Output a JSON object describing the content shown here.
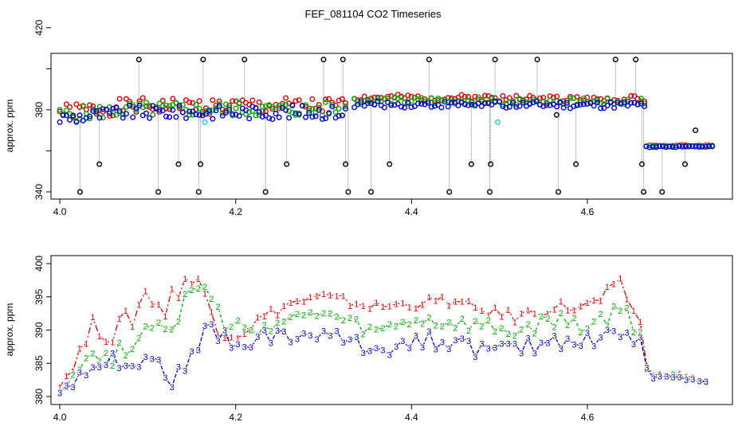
{
  "title": "FEF_081104  CO2 Timeseries",
  "colors": {
    "s1": "#dd0000",
    "s2": "#00aa00",
    "s3": "#0000cc",
    "outlier": "#000000",
    "cyan": "#22cccc",
    "stem": "#888888"
  },
  "chart_data": [
    {
      "type": "scatter",
      "name": "top-panel",
      "ylabel": "approx. ppm",
      "xlabel": "",
      "xlim": [
        3.99,
        4.765
      ],
      "ylim": [
        336.5,
        407.5
      ],
      "xticks": [
        4.0,
        4.2,
        4.4,
        4.6
      ],
      "xtick_labels": [
        "4.0",
        "4.2",
        "4.4",
        "4.6"
      ],
      "yticks": [
        340,
        360,
        380,
        400,
        420
      ],
      "ytick_labels": [
        "340",
        "",
        "380",
        "",
        "420"
      ],
      "series": [
        {
          "name": "1",
          "color": "#dd0000",
          "segments": [
            {
              "x0": 4.0,
              "x1": 4.325,
              "base": 381.8,
              "amp": 4.0,
              "seed": 1
            },
            {
              "x0": 4.335,
              "x1": 4.495,
              "base": 385.8,
              "amp": 1.6,
              "seed": 2
            },
            {
              "x0": 4.5,
              "x1": 4.665,
              "base": 385.2,
              "amp": 1.8,
              "seed": 3
            },
            {
              "x0": 4.667,
              "x1": 4.742,
              "base": 362.5,
              "amp": 0.4,
              "seed": 4
            }
          ]
        },
        {
          "name": "2",
          "color": "#00aa00",
          "segments": [
            {
              "x0": 4.0,
              "x1": 4.325,
              "base": 380.2,
              "amp": 3.6,
              "seed": 5
            },
            {
              "x0": 4.335,
              "x1": 4.495,
              "base": 384.5,
              "amp": 1.8,
              "seed": 6
            },
            {
              "x0": 4.5,
              "x1": 4.665,
              "base": 384.0,
              "amp": 1.8,
              "seed": 7
            },
            {
              "x0": 4.667,
              "x1": 4.742,
              "base": 362.3,
              "amp": 0.4,
              "seed": 8
            }
          ]
        },
        {
          "name": "3",
          "color": "#0000cc",
          "segments": [
            {
              "x0": 4.0,
              "x1": 4.325,
              "base": 378.8,
              "amp": 3.4,
              "seed": 9
            },
            {
              "x0": 4.335,
              "x1": 4.495,
              "base": 382.6,
              "amp": 1.6,
              "seed": 10
            },
            {
              "x0": 4.5,
              "x1": 4.665,
              "base": 382.4,
              "amp": 1.8,
              "seed": 11
            },
            {
              "x0": 4.667,
              "x1": 4.742,
              "base": 362.0,
              "amp": 0.4,
              "seed": 12
            }
          ]
        }
      ],
      "outliers_high": [
        4.09,
        4.163,
        4.21,
        4.3,
        4.322,
        4.42,
        4.495,
        4.543,
        4.632,
        4.655
      ],
      "outliers_mid": [
        4.045,
        4.135,
        4.16,
        4.258,
        4.325,
        4.375,
        4.468,
        4.49,
        4.587,
        4.662,
        4.711
      ],
      "outliers_low": [
        4.023,
        4.112,
        4.158,
        4.234,
        4.328,
        4.354,
        4.443,
        4.489,
        4.567,
        4.664,
        4.685
      ],
      "outliers_other": [
        {
          "x": 4.723,
          "y": 370.0
        },
        {
          "x": 4.565,
          "y": 377.5
        }
      ],
      "cyan_points": [
        {
          "x": 4.165,
          "y": 374.0
        },
        {
          "x": 4.498,
          "y": 374.0
        }
      ],
      "high_y": 404.5,
      "mid_y": 353.5,
      "low_y": 340.0
    },
    {
      "type": "line",
      "name": "bottom-panel",
      "ylabel": "approx. ppm",
      "xlabel": "",
      "xlim": [
        3.99,
        4.765
      ],
      "ylim": [
        378.8,
        401.2
      ],
      "xticks": [
        4.0,
        4.2,
        4.4,
        4.6
      ],
      "xtick_labels": [
        "4.0",
        "4.2",
        "4.4",
        "4.6"
      ],
      "yticks": [
        380,
        385,
        390,
        395,
        400
      ],
      "ytick_labels": [
        "380",
        "385",
        "390",
        "395",
        "400"
      ],
      "series": [
        {
          "name": "1",
          "label": "1",
          "color": "#dd0000",
          "dash": "8,3,2,3",
          "x": [
            4.0,
            4.02,
            4.04,
            4.06,
            4.08,
            4.1,
            4.12,
            4.14,
            4.16,
            4.18,
            4.2,
            4.22,
            4.26,
            4.3,
            4.36,
            4.4,
            4.44,
            4.48,
            4.52,
            4.56,
            4.6,
            4.64,
            4.66,
            4.67,
            4.7,
            4.74
          ],
          "y": [
            381.5,
            386.0,
            391.0,
            389.5,
            391.5,
            396.0,
            393.0,
            398.0,
            396.5,
            391.0,
            389.5,
            391.0,
            394.0,
            395.0,
            393.5,
            394.0,
            394.5,
            393.0,
            392.0,
            393.5,
            393.5,
            396.5,
            391.0,
            383.0,
            383.5,
            382.0
          ],
          "amp": [
            1.0,
            1.2,
            1.8,
            2.0,
            2.0,
            2.2,
            2.2,
            2.0,
            2.0,
            1.8,
            1.5,
            1.2,
            0.8,
            0.8,
            0.8,
            0.8,
            0.8,
            0.8,
            1.0,
            1.0,
            1.2,
            1.5,
            1.0,
            0.3,
            0.2,
            0.2
          ]
        },
        {
          "name": "2",
          "label": "2",
          "color": "#00aa00",
          "dash": "4,3",
          "x": [
            4.0,
            4.02,
            4.04,
            4.06,
            4.08,
            4.1,
            4.12,
            4.14,
            4.16,
            4.18,
            4.2,
            4.22,
            4.26,
            4.3,
            4.36,
            4.4,
            4.44,
            4.48,
            4.52,
            4.56,
            4.6,
            4.64,
            4.66,
            4.67,
            4.7,
            4.74
          ],
          "y": [
            381.0,
            384.0,
            386.5,
            386.0,
            388.0,
            391.0,
            391.0,
            393.5,
            397.0,
            392.0,
            390.0,
            390.0,
            391.5,
            392.5,
            389.5,
            391.5,
            391.0,
            390.5,
            389.5,
            391.5,
            390.5,
            393.0,
            389.5,
            382.8,
            383.2,
            382.0
          ],
          "amp": [
            0.6,
            0.8,
            1.2,
            1.5,
            1.6,
            1.8,
            2.0,
            2.0,
            2.0,
            1.8,
            1.5,
            1.2,
            1.0,
            1.0,
            1.2,
            1.2,
            1.2,
            1.2,
            1.2,
            1.4,
            1.4,
            1.6,
            1.2,
            0.3,
            0.2,
            0.2
          ]
        },
        {
          "name": "3",
          "label": "3",
          "color": "#0000cc",
          "dash": "5,2",
          "x": [
            4.0,
            4.02,
            4.04,
            4.06,
            4.08,
            4.1,
            4.12,
            4.14,
            4.16,
            4.18,
            4.2,
            4.22,
            4.26,
            4.3,
            4.36,
            4.4,
            4.44,
            4.48,
            4.52,
            4.56,
            4.6,
            4.64,
            4.66,
            4.67,
            4.7,
            4.74
          ],
          "y": [
            381.0,
            382.5,
            385.0,
            385.5,
            385.5,
            386.5,
            384.0,
            381.5,
            389.0,
            390.0,
            387.0,
            389.0,
            389.0,
            389.5,
            387.0,
            388.5,
            388.5,
            387.0,
            387.0,
            388.5,
            388.5,
            390.0,
            388.0,
            382.8,
            383.0,
            382.0
          ],
          "amp": [
            0.6,
            0.8,
            1.0,
            1.2,
            1.4,
            2.0,
            2.6,
            2.4,
            2.2,
            2.0,
            1.8,
            1.4,
            1.2,
            1.2,
            1.4,
            1.4,
            1.4,
            1.4,
            1.4,
            1.4,
            1.4,
            1.6,
            1.2,
            0.3,
            0.2,
            0.2
          ]
        }
      ]
    }
  ]
}
